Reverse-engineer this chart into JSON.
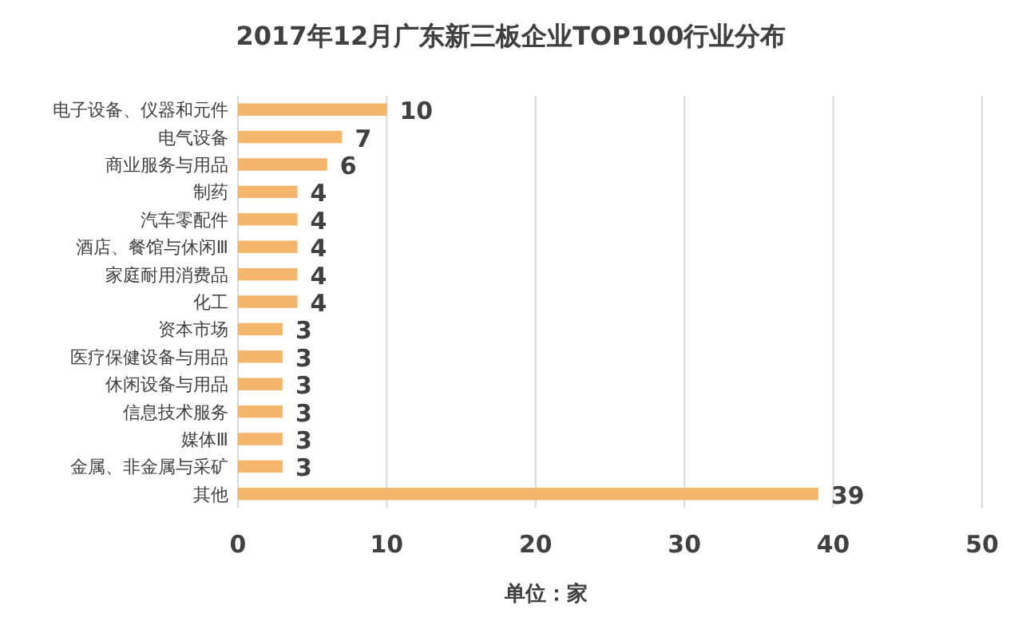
{
  "chart_data": {
    "type": "bar",
    "orientation": "horizontal",
    "title": "2017年12月广东新三板企业TOP100行业分布",
    "xlabel": "单位：家",
    "categories": [
      "电子设备、仪器和元件",
      "电气设备",
      "商业服务与用品",
      "制药",
      "汽车零配件",
      "酒店、餐馆与休闲Ⅲ",
      "家庭耐用消费品",
      "化工",
      "资本市场",
      "医疗保健设备与用品",
      "休闲设备与用品",
      "信息技术服务",
      "媒体Ⅲ",
      "金属、非金属与采矿",
      "其他"
    ],
    "values": [
      10,
      7,
      6,
      4,
      4,
      4,
      4,
      4,
      3,
      3,
      3,
      3,
      3,
      3,
      39
    ],
    "color": "#f4b66a",
    "xlim": [
      0,
      50
    ],
    "xticks": [
      0,
      10,
      20,
      30,
      40,
      50
    ],
    "grid": "x",
    "data_labels": true
  }
}
